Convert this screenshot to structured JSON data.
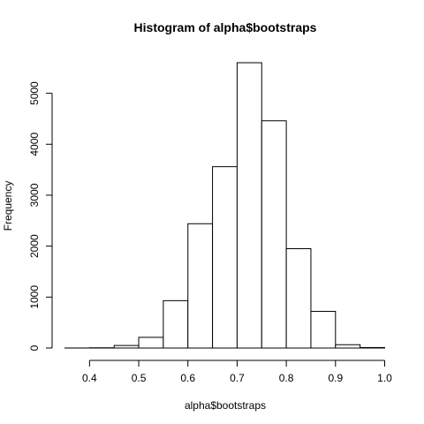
{
  "chart_data": {
    "type": "bar",
    "title": "Histogram of alpha$bootstraps",
    "xlabel": "alpha$bootstraps",
    "ylabel": "Frequency",
    "bin_edges": [
      0.35,
      0.4,
      0.45,
      0.5,
      0.55,
      0.6,
      0.65,
      0.7,
      0.75,
      0.8,
      0.85,
      0.9,
      0.95,
      1.0
    ],
    "values": [
      1,
      5,
      50,
      210,
      930,
      2440,
      3560,
      5600,
      4460,
      1950,
      720,
      65,
      10
    ],
    "xlim": [
      0.35,
      1.0
    ],
    "ylim": [
      0,
      5600
    ],
    "x_ticks": [
      "0.4",
      "0.5",
      "0.6",
      "0.7",
      "0.8",
      "0.9",
      "1.0"
    ],
    "y_ticks": [
      "0",
      "1000",
      "2000",
      "3000",
      "4000",
      "5000"
    ],
    "grid": false,
    "bar_fill": "#ffffff",
    "bar_stroke": "#000000"
  }
}
